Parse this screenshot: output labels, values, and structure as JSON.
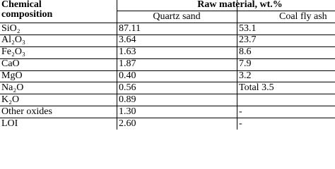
{
  "table": {
    "header": {
      "composition": "Chemical composition",
      "group": "Raw material, wt.%",
      "columns": [
        "Quartz sand",
        "Coal fly ash"
      ]
    },
    "rows": [
      [
        "SiO₂",
        "87.11",
        "53.1"
      ],
      [
        "Al₂O₃",
        "3.64",
        "23.7"
      ],
      [
        "Fe₂O₃",
        "1.63",
        "8.6"
      ],
      [
        "CaO",
        "1.87",
        "7.9"
      ],
      [
        "MgO",
        "0.40",
        "3.2"
      ],
      [
        "Na₂O",
        "0.56",
        "Total 3.5"
      ],
      [
        "K₂O",
        "0.89"
      ],
      [
        "Other oxides",
        "1.30",
        "-"
      ],
      [
        "LOI",
        "2.60",
        "-"
      ]
    ]
  }
}
